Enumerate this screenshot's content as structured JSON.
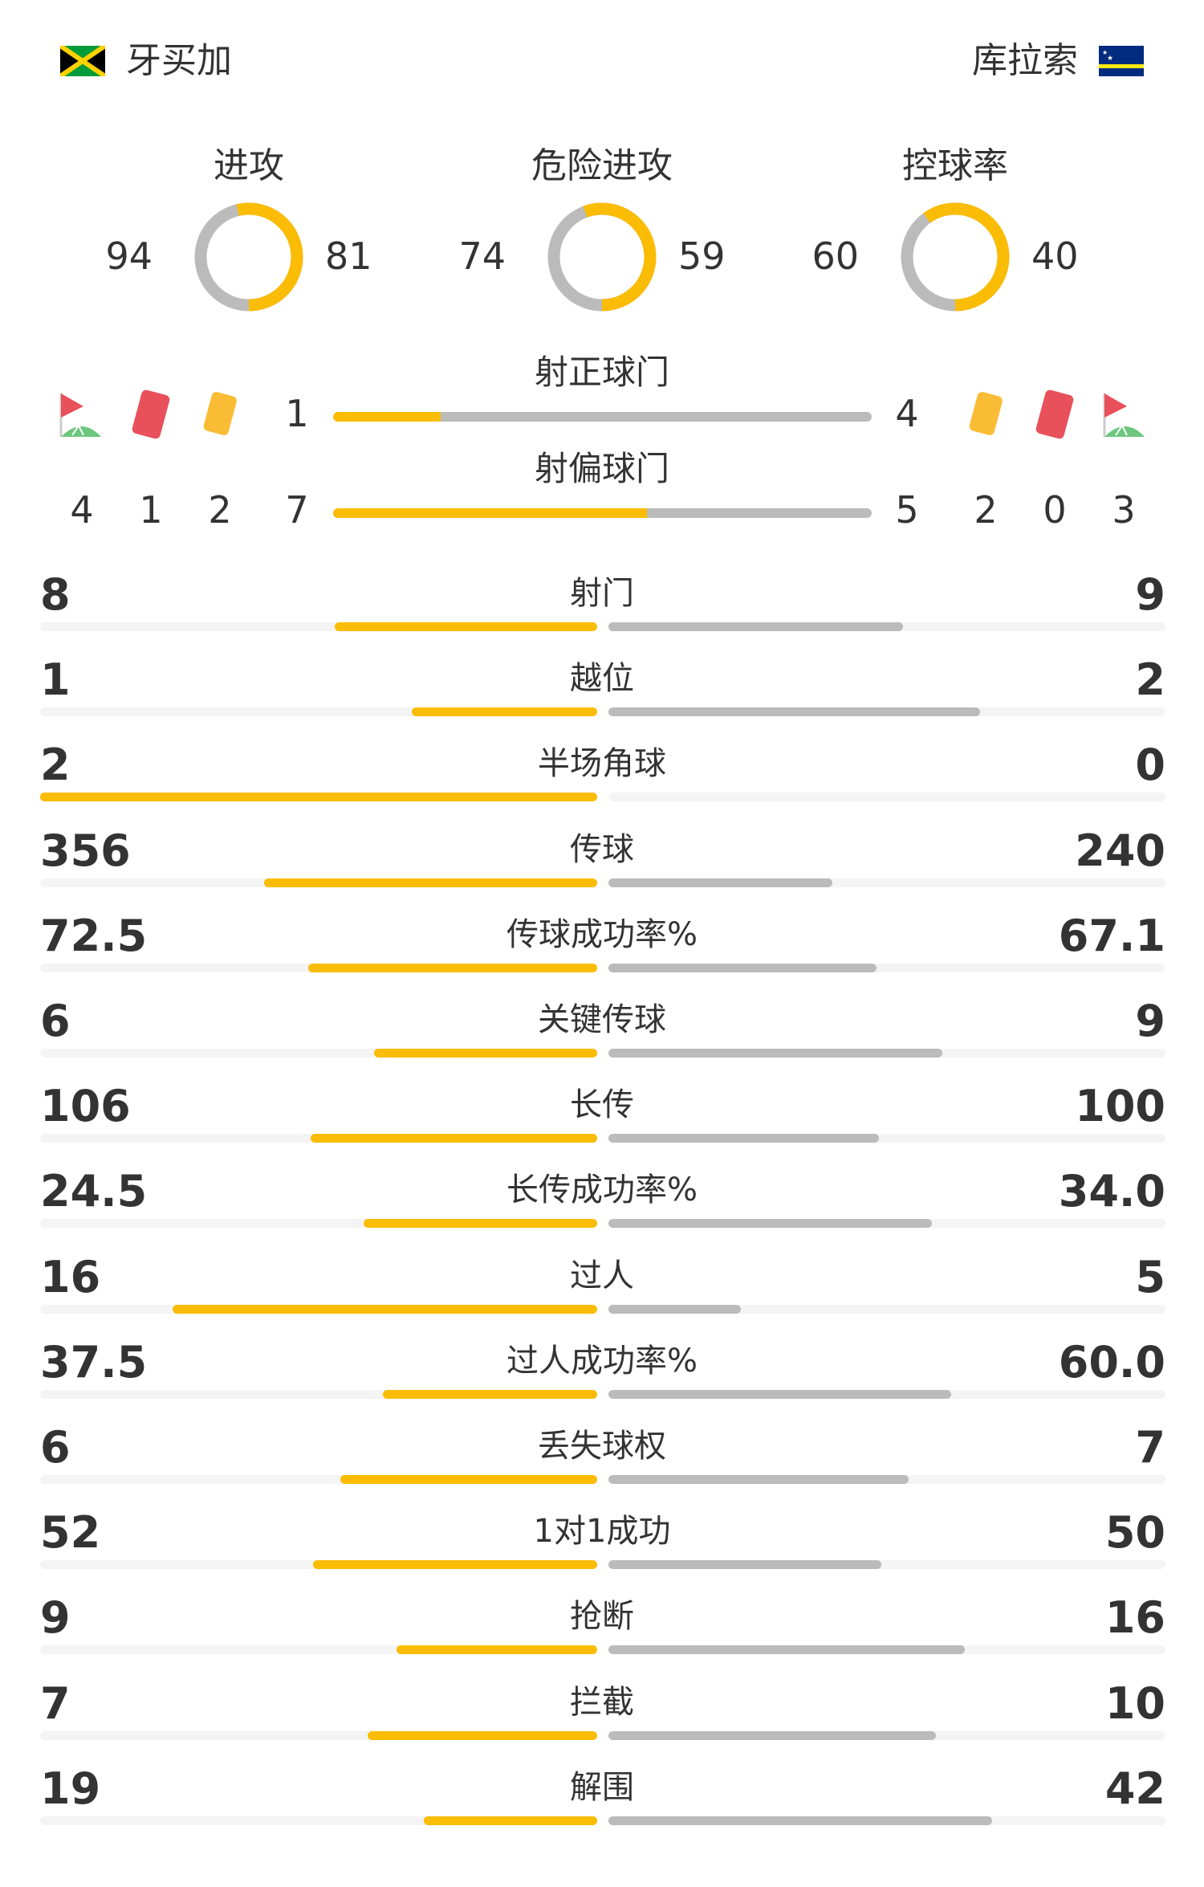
{
  "teams": {
    "home": {
      "name": "牙买加",
      "flag": "jamaica-flag"
    },
    "away": {
      "name": "库拉索",
      "flag": "curacao-flag"
    }
  },
  "colors": {
    "home": "#fbbc05",
    "away": "#bbbbbb",
    "track": "#f4f4f4",
    "text": "#333333"
  },
  "donuts": [
    {
      "label": "进攻",
      "home": 94,
      "away": 81
    },
    {
      "label": "危险进攻",
      "home": 74,
      "away": 59
    },
    {
      "label": "控球率",
      "home": 60,
      "away": 40
    }
  ],
  "shots_on_target": {
    "label": "射正球门",
    "home": 1,
    "away": 4
  },
  "shots_off_target": {
    "label": "射偏球门",
    "home": 7,
    "away": 5
  },
  "events": {
    "home": {
      "corners": 4,
      "red_cards": 1,
      "yellow_cards": 2
    },
    "away": {
      "yellow_cards": 2,
      "red_cards": 0,
      "corners": 3
    }
  },
  "stats": [
    {
      "label": "射门",
      "home": "8",
      "away": "9"
    },
    {
      "label": "越位",
      "home": "1",
      "away": "2"
    },
    {
      "label": "半场角球",
      "home": "2",
      "away": "0"
    },
    {
      "label": "传球",
      "home": "356",
      "away": "240"
    },
    {
      "label": "传球成功率%",
      "home": "72.5",
      "away": "67.1"
    },
    {
      "label": "关键传球",
      "home": "6",
      "away": "9"
    },
    {
      "label": "长传",
      "home": "106",
      "away": "100"
    },
    {
      "label": "长传成功率%",
      "home": "24.5",
      "away": "34.0"
    },
    {
      "label": "过人",
      "home": "16",
      "away": "5"
    },
    {
      "label": "过人成功率%",
      "home": "37.5",
      "away": "60.0"
    },
    {
      "label": "丢失球权",
      "home": "6",
      "away": "7"
    },
    {
      "label": "1对1成功",
      "home": "52",
      "away": "50"
    },
    {
      "label": "抢断",
      "home": "9",
      "away": "16"
    },
    {
      "label": "拦截",
      "home": "7",
      "away": "10"
    },
    {
      "label": "解围",
      "home": "19",
      "away": "42"
    }
  ]
}
